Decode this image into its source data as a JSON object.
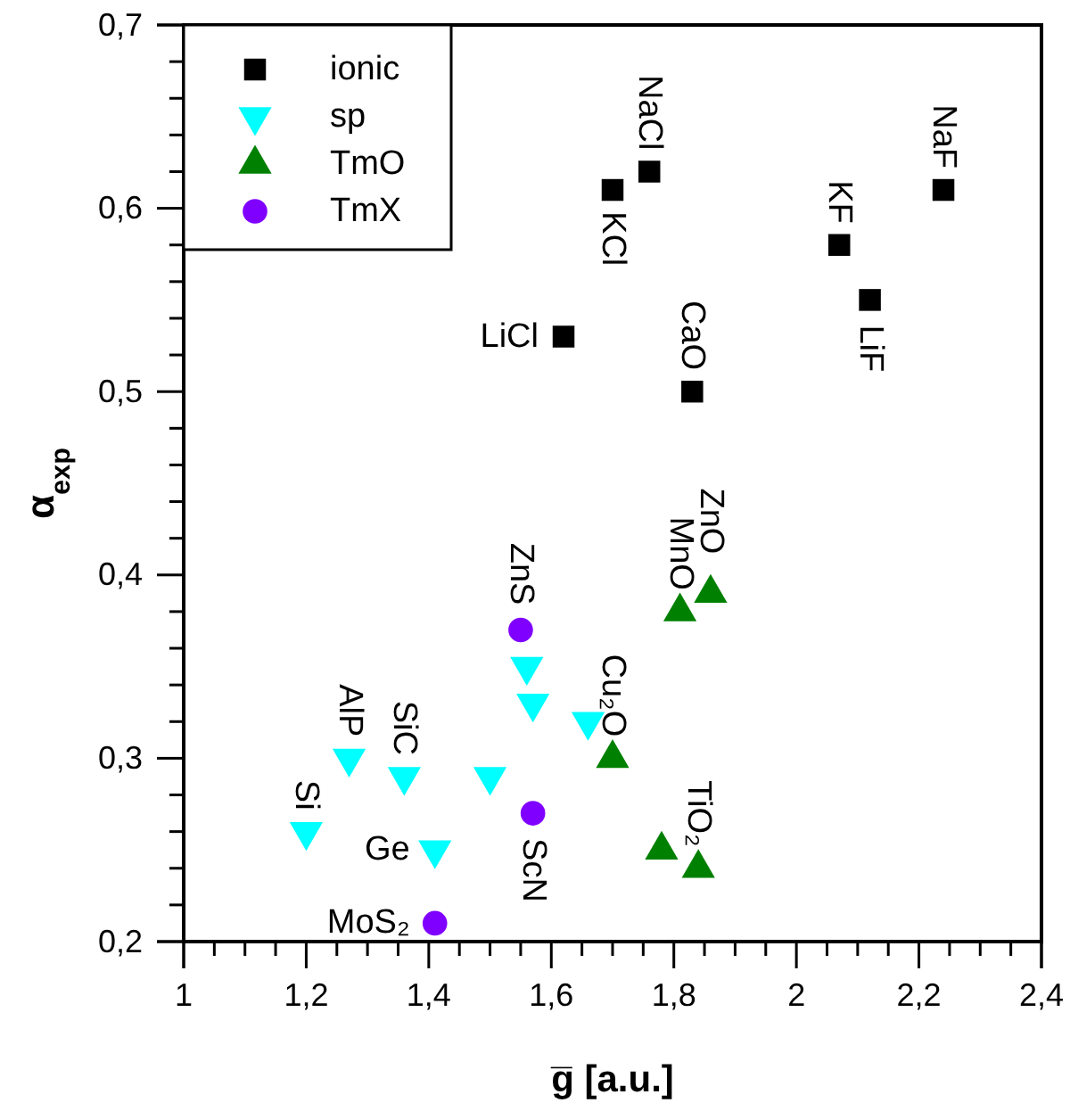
{
  "chart_data": {
    "type": "scatter",
    "xlabel": "g̅ [a.u.]",
    "ylabel": "α$_{exp}$",
    "xlim": [
      1,
      2.4
    ],
    "xticks": [
      1,
      {
        "value": 1.2,
        "label": "1,2"
      },
      {
        "value": 1.4,
        "label": "1,4"
      },
      {
        "value": 1.6,
        "label": "1,6"
      },
      {
        "value": 1.8,
        "label": "1,8"
      },
      2,
      {
        "value": 2.2,
        "label": "2,2"
      },
      {
        "value": 2.4,
        "label": "2,4"
      }
    ],
    "ylim": [
      0.2,
      0.7
    ],
    "yticks": [
      {
        "value": 0.2,
        "label": "0,2"
      },
      {
        "value": 0.3,
        "label": "0,3"
      },
      {
        "value": 0.4,
        "label": "0,4"
      },
      {
        "value": 0.5,
        "label": "0,5"
      },
      {
        "value": 0.6,
        "label": "0,6"
      },
      {
        "value": 0.7,
        "label": "0,7"
      }
    ],
    "legend": "top left",
    "grid": false,
    "series": [
      {
        "name": "ionic",
        "color": "#000000",
        "marker": "square",
        "x": [
          1.76,
          1.7,
          1.62,
          1.83,
          2.07,
          2.12,
          2.24
        ],
        "values": [
          0.62,
          0.61,
          0.53,
          0.5,
          0.58,
          0.55,
          0.61
        ]
      },
      {
        "name": "sp",
        "color": "#00ffff",
        "marker": "triangle-down",
        "x": [
          1.56,
          1.57,
          1.66,
          1.27,
          1.36,
          1.5,
          1.2,
          1.41
        ],
        "values": [
          0.35,
          0.33,
          0.32,
          0.3,
          0.29,
          0.29,
          0.26,
          0.25
        ]
      },
      {
        "name": "TmO",
        "color": "#008000",
        "marker": "triangle",
        "x": [
          1.86,
          1.81,
          1.7,
          1.78,
          1.84
        ],
        "values": [
          0.39,
          0.38,
          0.3,
          0.25,
          0.24
        ]
      },
      {
        "name": "TmX",
        "color": "#8000ff",
        "marker": "circle",
        "x": [
          1.55,
          1.57,
          1.41
        ],
        "values": [
          0.37,
          0.27,
          0.21
        ]
      }
    ],
    "annotations": [
      {
        "text": "NaCl",
        "x": 1.76,
        "y": 0.62
      },
      {
        "text": "KCl",
        "x": 1.7,
        "y": 0.61
      },
      {
        "text": "LiCl",
        "x": 1.62,
        "y": 0.53
      },
      {
        "text": "CaO",
        "x": 1.83,
        "y": 0.5
      },
      {
        "text": "KF",
        "x": 2.07,
        "y": 0.58
      },
      {
        "text": "LiF",
        "x": 2.12,
        "y": 0.55
      },
      {
        "text": "NaF",
        "x": 2.24,
        "y": 0.61
      },
      {
        "text": "ZnO",
        "x": 1.86,
        "y": 0.39
      },
      {
        "text": "MnO",
        "x": 1.81,
        "y": 0.38
      },
      {
        "text": "ZnS",
        "x": 1.55,
        "y": 0.37
      },
      {
        "text": "Cu₂O",
        "x": 1.7,
        "y": 0.3
      },
      {
        "text": "AlP",
        "x": 1.27,
        "y": 0.3
      },
      {
        "text": "SiC",
        "x": 1.36,
        "y": 0.29
      },
      {
        "text": "Si",
        "x": 1.2,
        "y": 0.26
      },
      {
        "text": "Ge",
        "x": 1.41,
        "y": 0.25
      },
      {
        "text": "TiO₂",
        "x": 1.84,
        "y": 0.24
      },
      {
        "text": "ScN",
        "x": 1.57,
        "y": 0.27
      },
      {
        "text": "MoS₂",
        "x": 1.41,
        "y": 0.21
      }
    ]
  }
}
